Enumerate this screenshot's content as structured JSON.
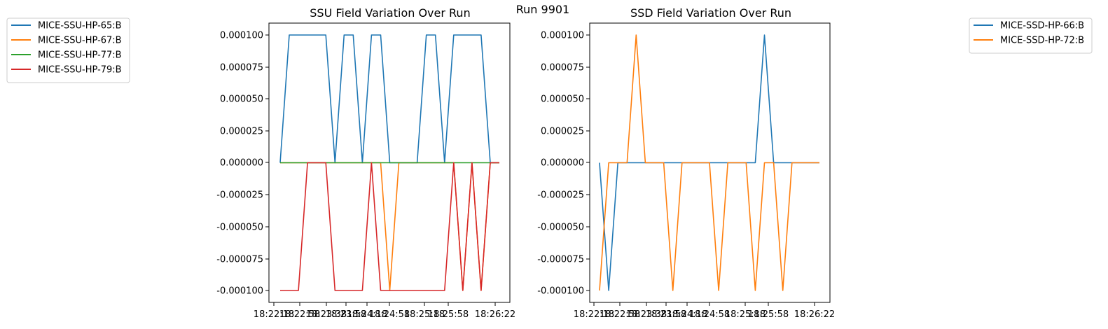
{
  "suptitle": "Run 9901",
  "chart_data": [
    {
      "type": "line",
      "title": "SSU Field Variation Over Run",
      "xlabel": "",
      "ylabel": "",
      "ylim": [
        -0.00011,
        0.00011
      ],
      "yticks": [
        "-0.000100",
        "-0.000075",
        "-0.000050",
        "-0.000025",
        "0.000000",
        "0.000025",
        "0.000050",
        "0.000075",
        "0.000100"
      ],
      "xticks": [
        "18:22:18",
        "18:22:58",
        "18:23:38",
        "18:23:58",
        "18:24:18",
        "18:24:58",
        "18:25:18",
        "18:25:58",
        "18:26:22"
      ],
      "legend_position": "outside-left",
      "series": [
        {
          "name": "MICE-SSU-HP-65:B",
          "color": "#1f77b4",
          "values": [
            0,
            0.0001,
            0.0001,
            0.0001,
            0.0001,
            0.0001,
            0,
            0.0001,
            0.0001,
            0,
            0.0001,
            0.0001,
            0,
            0,
            0,
            0,
            0.0001,
            0.0001,
            0,
            0.0001,
            0.0001,
            0.0001,
            0.0001,
            0,
            0
          ]
        },
        {
          "name": "MICE-SSU-HP-67:B",
          "color": "#ff7f0e",
          "values": [
            0,
            0,
            0,
            0,
            0,
            0,
            0,
            0,
            0,
            0,
            0,
            0,
            -0.0001,
            0,
            0,
            0,
            0,
            0,
            0,
            0,
            -0.0001,
            0,
            -0.0001,
            0,
            0
          ]
        },
        {
          "name": "MICE-SSU-HP-77:B",
          "color": "#2ca02c",
          "values": [
            0,
            0,
            0,
            0,
            0,
            0,
            0,
            0,
            0,
            0,
            0,
            0,
            0,
            0,
            0,
            0,
            0,
            0,
            0,
            0,
            0,
            0,
            0,
            0,
            0
          ]
        },
        {
          "name": "MICE-SSU-HP-79:B",
          "color": "#d62728",
          "values": [
            -0.0001,
            -0.0001,
            -0.0001,
            0,
            0,
            0,
            -0.0001,
            -0.0001,
            -0.0001,
            -0.0001,
            0,
            -0.0001,
            -0.0001,
            -0.0001,
            -0.0001,
            -0.0001,
            -0.0001,
            -0.0001,
            -0.0001,
            0,
            -0.0001,
            0,
            -0.0001,
            0,
            0
          ]
        }
      ]
    },
    {
      "type": "line",
      "title": "SSD Field Variation Over Run",
      "xlabel": "",
      "ylabel": "",
      "ylim": [
        -0.00011,
        0.00011
      ],
      "yticks": [
        "-0.000100",
        "-0.000075",
        "-0.000050",
        "-0.000025",
        "0.000000",
        "0.000025",
        "0.000050",
        "0.000075",
        "0.000100"
      ],
      "xticks": [
        "18:22:18",
        "18:22:58",
        "18:23:38",
        "18:23:58",
        "18:24:18",
        "18:24:58",
        "18:25:18",
        "18:25:58",
        "18:26:22"
      ],
      "legend_position": "outside-right",
      "series": [
        {
          "name": "MICE-SSD-HP-66:B",
          "color": "#1f77b4",
          "values": [
            0,
            -0.0001,
            0,
            0,
            0,
            0,
            0,
            0,
            0,
            0,
            0,
            0,
            0,
            0,
            0,
            0,
            0,
            0,
            0.0001,
            0,
            0,
            0,
            0,
            0,
            0
          ]
        },
        {
          "name": "MICE-SSD-HP-72:B",
          "color": "#ff7f0e",
          "values": [
            -0.0001,
            0,
            0,
            0,
            0.0001,
            0,
            0,
            0,
            -0.0001,
            0,
            0,
            0,
            0,
            -0.0001,
            0,
            0,
            0,
            -0.0001,
            0,
            0,
            -0.0001,
            0,
            0,
            0,
            0
          ]
        }
      ]
    }
  ]
}
